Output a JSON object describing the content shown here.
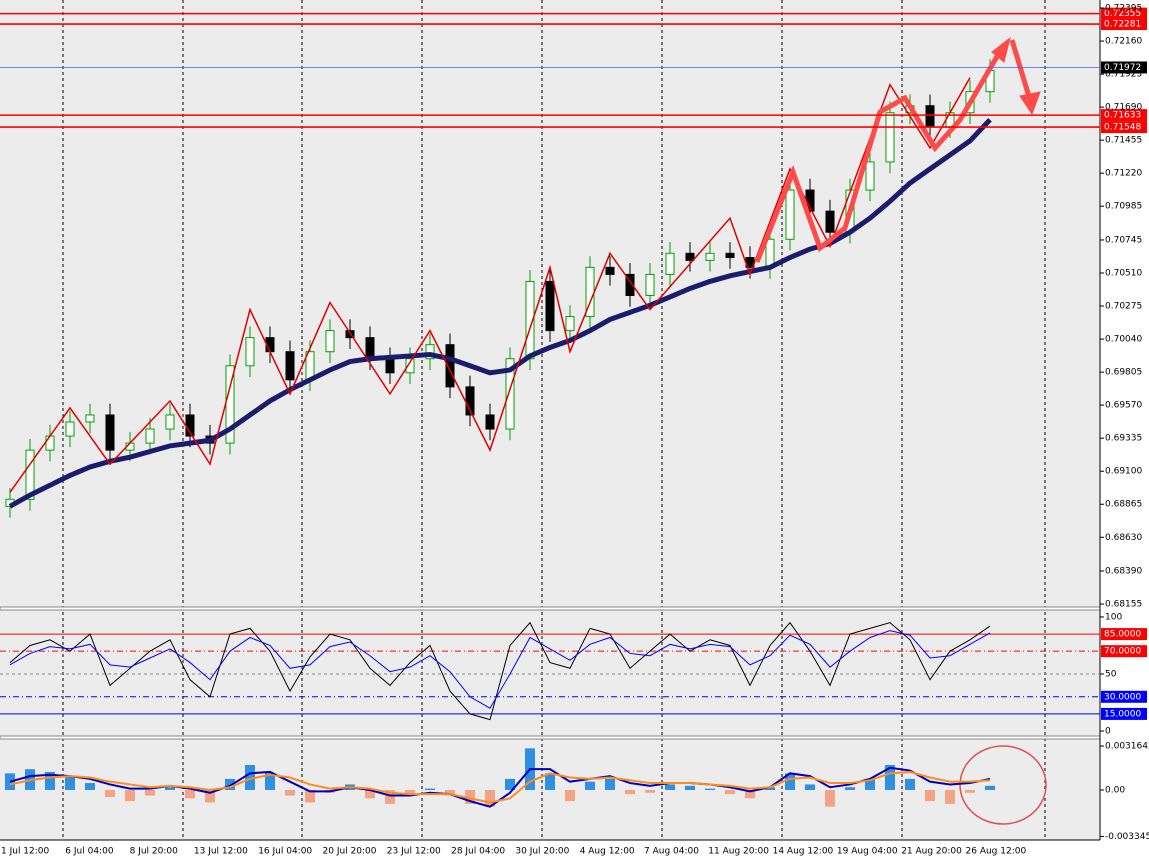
{
  "chart_data": [
    {
      "type": "candlestick",
      "up_color": "#00a000",
      "down_color": "#000000",
      "ohlc": [
        [
          0.6885,
          0.6898,
          0.6877,
          0.689
        ],
        [
          0.689,
          0.6933,
          0.6882,
          0.6925
        ],
        [
          0.6925,
          0.6943,
          0.6917,
          0.6935
        ],
        [
          0.6935,
          0.6953,
          0.6927,
          0.6945
        ],
        [
          0.6945,
          0.6958,
          0.6937,
          0.695
        ],
        [
          0.695,
          0.6958,
          0.6917,
          0.6925
        ],
        [
          0.6925,
          0.6938,
          0.6917,
          0.693
        ],
        [
          0.693,
          0.6948,
          0.6922,
          0.694
        ],
        [
          0.694,
          0.6958,
          0.6932,
          0.695
        ],
        [
          0.695,
          0.6958,
          0.6927,
          0.6935
        ],
        [
          0.6935,
          0.6943,
          0.6922,
          0.693
        ],
        [
          0.693,
          0.6993,
          0.6922,
          0.6985
        ],
        [
          0.6985,
          0.7013,
          0.6977,
          0.7005
        ],
        [
          0.7005,
          0.7013,
          0.6987,
          0.6995
        ],
        [
          0.6995,
          0.7003,
          0.6967,
          0.6975
        ],
        [
          0.6975,
          0.7003,
          0.6967,
          0.6995
        ],
        [
          0.6995,
          0.7018,
          0.6987,
          0.701
        ],
        [
          0.701,
          0.7018,
          0.6997,
          0.7005
        ],
        [
          0.7005,
          0.7013,
          0.6982,
          0.699
        ],
        [
          0.699,
          0.6998,
          0.6972,
          0.698
        ],
        [
          0.698,
          0.6998,
          0.6972,
          0.699
        ],
        [
          0.699,
          0.7008,
          0.6982,
          0.7
        ],
        [
          0.7,
          0.7008,
          0.6962,
          0.697
        ],
        [
          0.697,
          0.6978,
          0.6942,
          0.695
        ],
        [
          0.695,
          0.6958,
          0.6932,
          0.694
        ],
        [
          0.694,
          0.6998,
          0.6932,
          0.699
        ],
        [
          0.699,
          0.7053,
          0.6982,
          0.7045
        ],
        [
          0.7045,
          0.7053,
          0.7002,
          0.701
        ],
        [
          0.701,
          0.7028,
          0.7002,
          0.702
        ],
        [
          0.702,
          0.7063,
          0.7012,
          0.7055
        ],
        [
          0.7055,
          0.7063,
          0.7042,
          0.705
        ],
        [
          0.705,
          0.7058,
          0.7027,
          0.7035
        ],
        [
          0.7035,
          0.7058,
          0.7027,
          0.705
        ],
        [
          0.705,
          0.7073,
          0.7042,
          0.7065
        ],
        [
          0.7065,
          0.7073,
          0.7052,
          0.706
        ],
        [
          0.706,
          0.7073,
          0.7052,
          0.7065
        ],
        [
          0.7065,
          0.7073,
          0.7054,
          0.7062
        ],
        [
          0.7062,
          0.707,
          0.7047,
          0.7055
        ],
        [
          0.7055,
          0.7083,
          0.7047,
          0.7075
        ],
        [
          0.7075,
          0.7118,
          0.7067,
          0.711
        ],
        [
          0.711,
          0.7118,
          0.7087,
          0.7095
        ],
        [
          0.7095,
          0.7103,
          0.7072,
          0.708
        ],
        [
          0.708,
          0.7118,
          0.7072,
          0.711
        ],
        [
          0.711,
          0.7138,
          0.7102,
          0.713
        ],
        [
          0.713,
          0.7173,
          0.7122,
          0.7165
        ],
        [
          0.7165,
          0.7178,
          0.7157,
          0.717
        ],
        [
          0.717,
          0.7178,
          0.7147,
          0.7155
        ],
        [
          0.7155,
          0.7173,
          0.7147,
          0.7165
        ],
        [
          0.7165,
          0.7188,
          0.7157,
          0.718
        ],
        [
          0.718,
          0.7203,
          0.7172,
          0.7195
        ]
      ],
      "ma": {
        "color": "#1c1c6e",
        "values": [
          0.6885,
          0.6893,
          0.69,
          0.6907,
          0.6913,
          0.6917,
          0.692,
          0.6924,
          0.6928,
          0.693,
          0.6932,
          0.694,
          0.695,
          0.696,
          0.6968,
          0.6975,
          0.6982,
          0.6988,
          0.699,
          0.6991,
          0.6992,
          0.6993,
          0.699,
          0.6985,
          0.698,
          0.6982,
          0.6992,
          0.6998,
          0.7003,
          0.701,
          0.7018,
          0.7023,
          0.7028,
          0.7034,
          0.704,
          0.7045,
          0.7049,
          0.7052,
          0.7055,
          0.7062,
          0.7068,
          0.7072,
          0.708,
          0.709,
          0.7102,
          0.7115,
          0.7125,
          0.7135,
          0.7145,
          0.716
        ]
      },
      "zigzag": {
        "color": "#e00000",
        "x": [
          0,
          3,
          5,
          8,
          10,
          12,
          14,
          16,
          19,
          21,
          24,
          27,
          28,
          30,
          32,
          36,
          37,
          39,
          41,
          44,
          46,
          48
        ],
        "values": [
          0.6895,
          0.6955,
          0.6915,
          0.696,
          0.6915,
          0.7025,
          0.6965,
          0.703,
          0.6965,
          0.701,
          0.6925,
          0.7055,
          0.6995,
          0.7065,
          0.7025,
          0.709,
          0.705,
          0.7125,
          0.707,
          0.7185,
          0.714,
          0.719
        ]
      },
      "ylim": [
        0.68134,
        0.72452
      ],
      "yticks": [
        0.72395,
        {
          "value": 0.7216,
          "label": "0.72160"
        },
        0.71925,
        {
          "value": 0.7169,
          "label": "0.71690"
        },
        0.71455,
        {
          "value": 0.7122,
          "label": "0.71220"
        },
        0.70985,
        0.70745,
        {
          "value": 0.7051,
          "label": "0.70510"
        },
        0.70275,
        {
          "value": 0.7004,
          "label": "0.70040"
        },
        0.69805,
        {
          "value": 0.6957,
          "label": "0.69570"
        },
        0.69335,
        {
          "value": 0.691,
          "label": "0.69100"
        },
        0.68865,
        {
          "value": 0.6863,
          "label": "0.68630"
        },
        {
          "value": 0.6839,
          "label": "0.68390"
        },
        0.68155
      ],
      "levels": [
        {
          "value": 0.72355,
          "color": "#ff0000"
        },
        {
          "value": 0.72281,
          "color": "#ff0000"
        },
        {
          "value": 0.71972,
          "color": "#4060ff",
          "box": "#000000"
        },
        {
          "value": 0.71633,
          "color": "#ff0000"
        },
        {
          "value": 0.71548,
          "color": "#ff0000"
        }
      ],
      "categories": [
        "1 Jul 12:00",
        "6 Jul 04:00",
        "8 Jul 20:00",
        "13 Jul 12:00",
        "16 Jul 04:00",
        "20 Jul 20:00",
        "23 Jul 12:00",
        "28 Jul 04:00",
        "30 Jul 20:00",
        "4 Aug 12:00",
        "7 Aug 04:00",
        "11 Aug 20:00",
        "14 Aug 12:00",
        "19 Aug 04:00",
        "21 Aug 20:00",
        "26 Aug 12:00"
      ]
    },
    {
      "type": "line",
      "ylim": [
        -3.5,
        106.1
      ],
      "yticks": [
        100,
        50,
        0
      ],
      "levels": [
        {
          "value": 85,
          "label": "85.0000",
          "color": "#ff0000",
          "style": "solid"
        },
        {
          "value": 70,
          "label": "70.0000",
          "color": "#ff0000",
          "style": "dashdot"
        },
        {
          "value": 30,
          "label": "30.0000",
          "color": "#0000ff",
          "style": "dashdot"
        },
        {
          "value": 15,
          "label": "15.0000",
          "color": "#0000ff",
          "style": "solid"
        }
      ],
      "series": [
        {
          "color": "#000000",
          "values": [
            60,
            75,
            80,
            70,
            85,
            40,
            55,
            70,
            80,
            45,
            30,
            85,
            90,
            70,
            35,
            65,
            85,
            80,
            55,
            40,
            60,
            75,
            35,
            15,
            10,
            75,
            95,
            60,
            55,
            90,
            85,
            55,
            70,
            85,
            70,
            80,
            75,
            40,
            75,
            95,
            70,
            40,
            85,
            90,
            95,
            80,
            45,
            70,
            80,
            92
          ]
        },
        {
          "color": "#0000ff",
          "values": [
            58,
            68,
            74,
            72,
            76,
            58,
            56,
            64,
            72,
            60,
            45,
            70,
            82,
            75,
            55,
            58,
            74,
            78,
            66,
            52,
            56,
            66,
            52,
            30,
            20,
            50,
            82,
            72,
            62,
            76,
            82,
            68,
            66,
            76,
            72,
            76,
            74,
            58,
            66,
            84,
            76,
            56,
            70,
            82,
            88,
            84,
            64,
            66,
            76,
            86
          ]
        }
      ]
    },
    {
      "type": "macd",
      "ylim": [
        -0.0036,
        0.0036
      ],
      "yticks": [
        0.0031642,
        {
          "value": 0,
          "label": "0.00"
        },
        -0.003345
      ],
      "up_color": "#2f8fe0",
      "down_color": "#f4a385",
      "histogram": [
        0.0012,
        0.0015,
        0.0013,
        0.001,
        0.0005,
        -0.0005,
        -0.0008,
        -0.0004,
        0.0002,
        -0.0006,
        -0.0009,
        0.0008,
        0.0018,
        0.0012,
        -0.0004,
        -0.0009,
        -0.0002,
        0.0004,
        -0.0006,
        -0.001,
        -0.0004,
        0.0001,
        -0.0004,
        -0.001,
        -0.0012,
        0.0008,
        0.003,
        0.0012,
        -0.0008,
        0.0006,
        0.0008,
        -0.0003,
        -0.0002,
        0.0004,
        0.0003,
        0.0001,
        -0.0003,
        -0.0006,
        0.0002,
        0.0012,
        0.0004,
        -0.0012,
        0.0002,
        0.0008,
        0.0018,
        0.0008,
        -0.0008,
        -0.001,
        -0.0002,
        0.0003
      ],
      "series": [
        {
          "color": "#0000c0",
          "values": [
            0.0006,
            0.001,
            0.0011,
            0.001,
            0.0008,
            0.0004,
            0.0001,
            0.0001,
            0.0003,
            0.0001,
            -0.0002,
            0.0003,
            0.0012,
            0.0013,
            0.0006,
            -0.0001,
            -0.0001,
            0.0002,
            0,
            -0.0004,
            -0.0004,
            -0.0002,
            -0.0003,
            -0.0008,
            -0.0012,
            -0.0002,
            0.0015,
            0.0015,
            0.0006,
            0.0008,
            0.001,
            0.0005,
            0.0003,
            0.0005,
            0.0005,
            0.0004,
            0.0002,
            -0.0001,
            0.0002,
            0.0012,
            0.001,
            0.0002,
            0.0004,
            0.0008,
            0.0016,
            0.0014,
            0.0006,
            0.0004,
            0.0005,
            0.0008
          ]
        },
        {
          "color": "#ff8c1a",
          "values": [
            0.0004,
            0.0007,
            0.0009,
            0.001,
            0.0009,
            0.0006,
            0.0004,
            0.0002,
            0.0003,
            0.0002,
            0,
            0.0002,
            0.0008,
            0.0011,
            0.0009,
            0.0004,
            0.0001,
            0.0002,
            0.0001,
            -0.0002,
            -0.0003,
            -0.0003,
            -0.0003,
            -0.0006,
            -0.0009,
            -0.0006,
            0.0006,
            0.0012,
            0.0009,
            0.0008,
            0.0009,
            0.0007,
            0.0005,
            0.0005,
            0.0005,
            0.0004,
            0.0003,
            0.0001,
            0.0002,
            0.0008,
            0.0009,
            0.0005,
            0.0005,
            0.0007,
            0.0012,
            0.0013,
            0.0009,
            0.0006,
            0.0006,
            0.0007
          ]
        }
      ]
    }
  ]
}
